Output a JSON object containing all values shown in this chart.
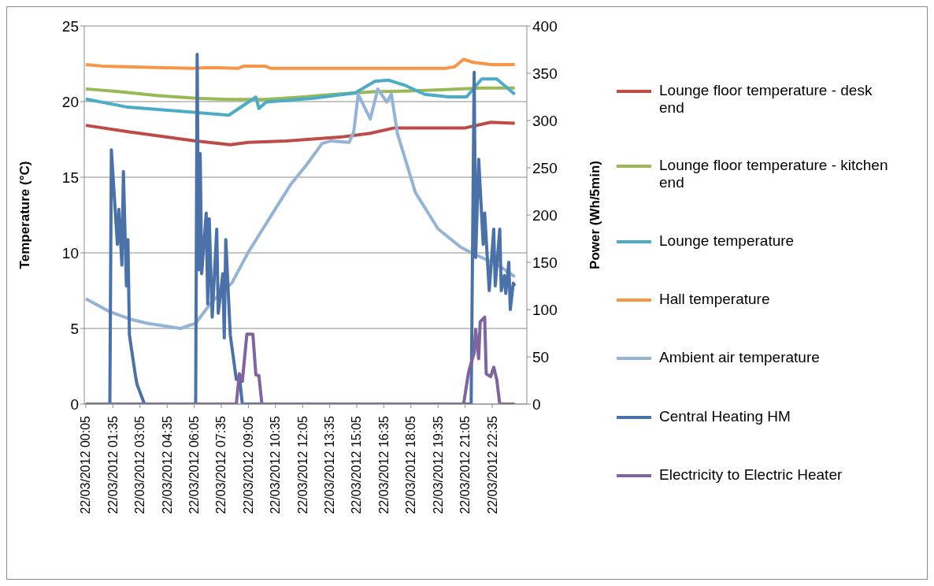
{
  "chart_data": {
    "type": "line",
    "ylabel": "Temperature (°C)",
    "y2label": "Power (Wh/5min)",
    "xlim": [
      "2012-03-22T00:00",
      "2012-03-23T00:30"
    ],
    "xticks": [
      {
        "value": "2012-03-22T00:05",
        "label": "22/03/2012 00:05"
      },
      {
        "value": "2012-03-22T01:35",
        "label": "22/03/2012 01:35"
      },
      {
        "value": "2012-03-22T03:05",
        "label": "22/03/2012 03:05"
      },
      {
        "value": "2012-03-22T04:35",
        "label": "22/03/2012 04:35"
      },
      {
        "value": "2012-03-22T06:05",
        "label": "22/03/2012 06:05"
      },
      {
        "value": "2012-03-22T07:35",
        "label": "22/03/2012 07:35"
      },
      {
        "value": "2012-03-22T09:05",
        "label": "22/03/2012 09:05"
      },
      {
        "value": "2012-03-22T10:35",
        "label": "22/03/2012 10:35"
      },
      {
        "value": "2012-03-22T12:05",
        "label": "22/03/2012 12:05"
      },
      {
        "value": "2012-03-22T13:35",
        "label": "22/03/2012 13:35"
      },
      {
        "value": "2012-03-22T15:05",
        "label": "22/03/2012 15:05"
      },
      {
        "value": "2012-03-22T16:35",
        "label": "22/03/2012 16:35"
      },
      {
        "value": "2012-03-22T18:05",
        "label": "22/03/2012 18:05"
      },
      {
        "value": "2012-03-22T19:35",
        "label": "22/03/2012 19:35"
      },
      {
        "value": "2012-03-22T21:05",
        "label": "22/03/2012 21:05"
      },
      {
        "value": "2012-03-22T22:35",
        "label": "22/03/2012 22:35"
      }
    ],
    "ylim": [
      0,
      25
    ],
    "yticks": [
      0,
      5,
      10,
      15,
      20,
      25
    ],
    "y2lim": [
      0,
      400
    ],
    "y2ticks": [
      0,
      50,
      100,
      150,
      200,
      250,
      300,
      350,
      400
    ],
    "grid": "y",
    "legend": "right",
    "marker": "none",
    "series": [
      {
        "name": "Lounge floor temperature - desk end",
        "color": "#be4b48",
        "x": [
          "2012-03-22T00:05",
          "2012-03-22T02:30",
          "2012-03-22T06:10",
          "2012-03-22T08:05",
          "2012-03-22T09:05",
          "2012-03-22T11:10",
          "2012-03-22T14:10",
          "2012-03-22T15:50",
          "2012-03-22T17:10",
          "2012-03-22T21:05",
          "2012-03-22T22:30",
          "2012-03-22T23:50"
        ],
        "values": [
          18.43,
          18.0,
          17.4,
          17.15,
          17.3,
          17.4,
          17.65,
          17.9,
          18.26,
          18.26,
          18.63,
          18.57
        ]
      },
      {
        "name": "Lounge floor temperature - kitchen end",
        "color": "#98b954",
        "x": [
          "2012-03-22T00:05",
          "2012-03-22T02:00",
          "2012-03-22T04:00",
          "2012-03-22T06:10",
          "2012-03-22T08:00",
          "2012-03-22T10:00",
          "2012-03-22T12:00",
          "2012-03-22T14:00",
          "2012-03-22T16:00",
          "2012-03-22T18:00",
          "2012-03-22T20:00",
          "2012-03-22T22:00",
          "2012-03-22T23:50"
        ],
        "values": [
          20.84,
          20.65,
          20.4,
          20.22,
          20.14,
          20.14,
          20.3,
          20.5,
          20.65,
          20.7,
          20.8,
          20.9,
          20.9
        ]
      },
      {
        "name": "Lounge temperature",
        "color": "#4bacc6",
        "x": [
          "2012-03-22T00:05",
          "2012-03-22T02:25",
          "2012-03-22T06:10",
          "2012-03-22T08:00",
          "2012-03-22T09:30",
          "2012-03-22T09:40",
          "2012-03-22T10:05",
          "2012-03-22T12:40",
          "2012-03-22T15:00",
          "2012-03-22T16:05",
          "2012-03-22T16:50",
          "2012-03-22T17:45",
          "2012-03-22T18:50",
          "2012-03-22T20:10",
          "2012-03-22T21:10",
          "2012-03-22T22:00",
          "2012-03-22T22:50",
          "2012-03-22T23:50"
        ],
        "values": [
          20.17,
          19.63,
          19.28,
          19.1,
          20.3,
          19.55,
          19.97,
          20.22,
          20.57,
          21.34,
          21.42,
          21.08,
          20.48,
          20.31,
          20.31,
          21.5,
          21.5,
          20.48
        ]
      },
      {
        "name": "Hall temperature",
        "color": "#f79646",
        "x": [
          "2012-03-22T00:05",
          "2012-03-22T01:00",
          "2012-03-22T04:00",
          "2012-03-22T06:00",
          "2012-03-22T07:00",
          "2012-03-22T08:30",
          "2012-03-22T08:50",
          "2012-03-22T10:00",
          "2012-03-22T10:20",
          "2012-03-22T20:00",
          "2012-03-22T20:30",
          "2012-03-22T21:00",
          "2012-03-22T21:30",
          "2012-03-22T22:30",
          "2012-03-22T23:50"
        ],
        "values": [
          22.45,
          22.35,
          22.25,
          22.2,
          22.25,
          22.2,
          22.35,
          22.35,
          22.2,
          22.2,
          22.3,
          22.8,
          22.6,
          22.45,
          22.45
        ]
      },
      {
        "name": "Ambient air temperature",
        "color": "#95b3d7",
        "x": [
          "2012-03-22T00:05",
          "2012-03-22T01:25",
          "2012-03-22T02:35",
          "2012-03-22T03:30",
          "2012-03-22T05:20",
          "2012-03-22T06:10",
          "2012-03-22T07:05",
          "2012-03-22T08:10",
          "2012-03-22T09:05",
          "2012-03-22T10:25",
          "2012-03-22T11:25",
          "2012-03-22T12:20",
          "2012-03-22T13:10",
          "2012-03-22T13:40",
          "2012-03-22T14:40",
          "2012-03-22T14:55",
          "2012-03-22T15:10",
          "2012-03-22T15:50",
          "2012-03-22T16:15",
          "2012-03-22T16:45",
          "2012-03-22T17:00",
          "2012-03-22T17:20",
          "2012-03-22T18:20",
          "2012-03-22T19:35",
          "2012-03-22T20:50",
          "2012-03-22T21:30",
          "2012-03-22T22:55",
          "2012-03-22T23:50"
        ],
        "values": [
          6.97,
          6.1,
          5.6,
          5.34,
          5.0,
          5.34,
          6.8,
          8.0,
          10.05,
          12.6,
          14.5,
          15.86,
          17.23,
          17.4,
          17.3,
          18.0,
          20.48,
          18.85,
          20.83,
          19.97,
          20.5,
          17.9,
          13.98,
          11.59,
          10.38,
          9.96,
          9.19,
          8.42
        ]
      },
      {
        "name": "Central Heating HM",
        "color": "#4a72a8",
        "axis": "y2",
        "x": [
          "2012-03-22T00:05",
          "2012-03-22T01:25",
          "2012-03-22T01:30",
          "2012-03-22T01:50",
          "2012-03-22T01:55",
          "2012-03-22T02:05",
          "2012-03-22T02:10",
          "2012-03-22T02:20",
          "2012-03-22T02:25",
          "2012-03-22T02:30",
          "2012-03-22T02:50",
          "2012-03-22T02:55",
          "2012-03-22T03:20",
          "2012-03-22T06:10",
          "2012-03-22T06:15",
          "2012-03-22T06:20",
          "2012-03-22T06:25",
          "2012-03-22T06:30",
          "2012-03-22T06:45",
          "2012-03-22T06:50",
          "2012-03-22T06:55",
          "2012-03-22T07:05",
          "2012-03-22T07:20",
          "2012-03-22T07:25",
          "2012-03-22T07:40",
          "2012-03-22T07:45",
          "2012-03-22T07:50",
          "2012-03-22T08:05",
          "2012-03-22T08:25",
          "2012-03-22T08:35",
          "2012-03-22T08:45",
          "2012-03-22T21:25",
          "2012-03-22T21:35",
          "2012-03-22T21:40",
          "2012-03-22T21:50",
          "2012-03-22T22:05",
          "2012-03-22T22:10",
          "2012-03-22T22:25",
          "2012-03-22T22:40",
          "2012-03-22T22:45",
          "2012-03-22T23:00",
          "2012-03-22T23:05",
          "2012-03-22T23:15",
          "2012-03-22T23:20",
          "2012-03-22T23:30",
          "2012-03-22T23:35",
          "2012-03-22T23:45",
          "2012-03-22T23:50"
        ],
        "values": [
          0,
          0,
          269,
          169,
          206,
          147,
          246,
          125,
          174,
          73,
          30,
          21,
          0,
          0,
          370,
          142,
          265,
          138,
          202,
          106,
          196,
          92,
          185,
          96,
          138,
          70,
          174,
          73,
          26,
          30,
          0,
          0,
          351,
          155,
          259,
          169,
          202,
          120,
          185,
          125,
          185,
          120,
          136,
          117,
          150,
          100,
          128,
          125
        ]
      },
      {
        "name": "Electricity to Electric Heater",
        "color": "#7f64a0",
        "axis": "y2",
        "x": [
          "2012-03-22T00:05",
          "2012-03-22T08:25",
          "2012-03-22T08:35",
          "2012-03-22T08:45",
          "2012-03-22T09:00",
          "2012-03-22T09:20",
          "2012-03-22T09:30",
          "2012-03-22T09:40",
          "2012-03-22T09:50",
          "2012-03-22T21:00",
          "2012-03-22T21:15",
          "2012-03-22T21:20",
          "2012-03-22T21:35",
          "2012-03-22T21:40",
          "2012-03-22T21:50",
          "2012-03-22T21:55",
          "2012-03-22T22:10",
          "2012-03-22T22:15",
          "2012-03-22T22:30",
          "2012-03-22T22:40",
          "2012-03-22T22:50",
          "2012-03-22T23:00",
          "2012-03-22T23:50"
        ],
        "values": [
          0,
          0,
          32,
          24,
          74,
          74,
          31,
          30,
          0,
          0,
          31,
          38,
          54,
          79,
          48,
          87,
          92,
          32,
          29,
          39,
          26,
          0,
          0
        ]
      }
    ]
  }
}
